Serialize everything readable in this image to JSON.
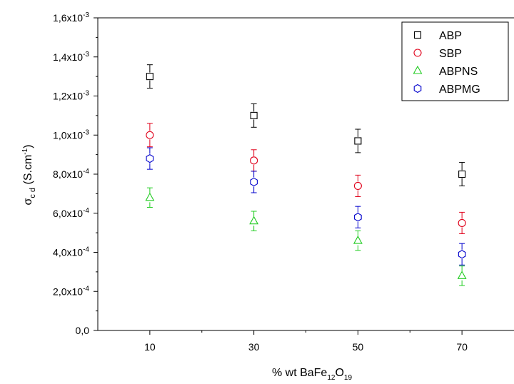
{
  "chart_data": {
    "type": "scatter",
    "xlabel": {
      "main": "% wt BaFe",
      "sub1": "12",
      "mid": "O",
      "sub2": "19"
    },
    "ylabel": {
      "sigma": "σ",
      "sub": "c d",
      "unit_open": " (S.cm",
      "sup": "-1",
      "unit_close": ")"
    },
    "x_ticks": [
      "10",
      "30",
      "50",
      "70"
    ],
    "x_tick_values": [
      10,
      30,
      50,
      70
    ],
    "x_minor_ticks": [
      20,
      40,
      60
    ],
    "xlim": [
      0,
      80
    ],
    "y_ticks": [
      {
        "value": 0,
        "mant": "0,0",
        "exp": ""
      },
      {
        "value": 0.0002,
        "mant": "2,0x10",
        "exp": "-4"
      },
      {
        "value": 0.0004,
        "mant": "4,0x10",
        "exp": "-4"
      },
      {
        "value": 0.0006,
        "mant": "6,0x10",
        "exp": "-4"
      },
      {
        "value": 0.0008,
        "mant": "8,0x10",
        "exp": "-4"
      },
      {
        "value": 0.001,
        "mant": "1,0x10",
        "exp": "-3"
      },
      {
        "value": 0.0012,
        "mant": "1,2x10",
        "exp": "-3"
      },
      {
        "value": 0.0014,
        "mant": "1,4x10",
        "exp": "-3"
      },
      {
        "value": 0.0016,
        "mant": "1,6x10",
        "exp": "-3"
      }
    ],
    "ylim": [
      0,
      0.0016
    ],
    "grid": false,
    "legend_position": "top-right",
    "series": [
      {
        "name": "ABP",
        "marker": "square",
        "color": "#000000",
        "x": [
          10,
          30,
          50,
          70
        ],
        "y": [
          0.0013,
          0.0011,
          0.00097,
          0.0008
        ],
        "err": [
          6e-05,
          6e-05,
          6e-05,
          6e-05
        ]
      },
      {
        "name": "SBP",
        "marker": "circle",
        "color": "#e0001a",
        "x": [
          10,
          30,
          50,
          70
        ],
        "y": [
          0.001,
          0.00087,
          0.00074,
          0.00055
        ],
        "err": [
          6e-05,
          5.5e-05,
          5.5e-05,
          5.5e-05
        ]
      },
      {
        "name": "ABPNS",
        "marker": "triangle",
        "color": "#22cc22",
        "x": [
          10,
          30,
          50,
          70
        ],
        "y": [
          0.00068,
          0.00056,
          0.00046,
          0.00028
        ],
        "err": [
          5e-05,
          5e-05,
          5e-05,
          5e-05
        ]
      },
      {
        "name": "ABPMG",
        "marker": "hexagon",
        "color": "#0000cc",
        "x": [
          10,
          30,
          50,
          70
        ],
        "y": [
          0.00088,
          0.00076,
          0.00058,
          0.00039
        ],
        "err": [
          5.5e-05,
          5.5e-05,
          5.5e-05,
          5.5e-05
        ]
      }
    ]
  }
}
